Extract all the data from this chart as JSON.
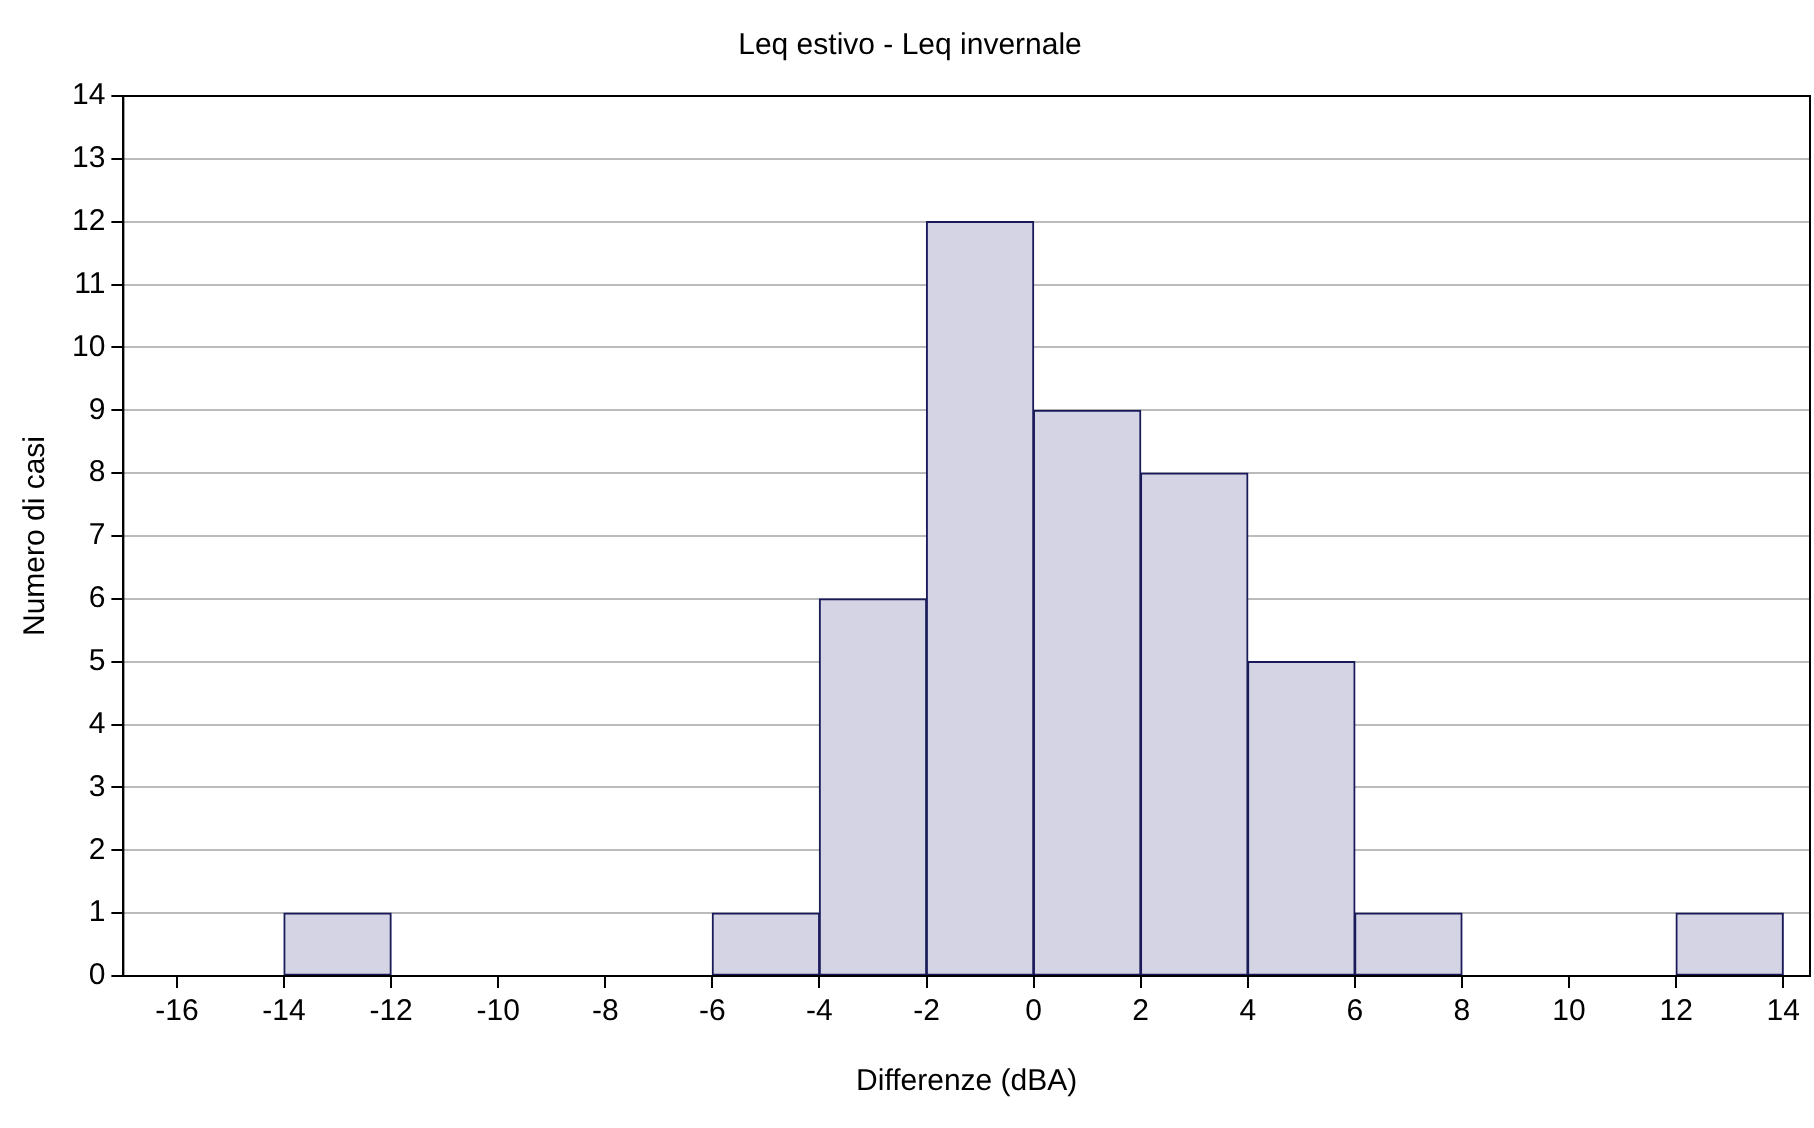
{
  "chart_data": {
    "type": "histogram",
    "title": "Leq estivo - Leq invernale",
    "xlabel": "Differenze (dBA)",
    "ylabel": "Numero di casi",
    "bins": [
      -16,
      -14,
      -12,
      -10,
      -8,
      -6,
      -4,
      -2,
      0,
      2,
      4,
      6,
      8,
      10,
      12,
      14
    ],
    "values": [
      0,
      1,
      0,
      0,
      0,
      1,
      6,
      12,
      9,
      8,
      5,
      1,
      0,
      0,
      1
    ],
    "color": "#d4d4e4",
    "xlim": [
      -17,
      14.5
    ],
    "xticks": [
      -16,
      -14,
      -12,
      -10,
      -8,
      -6,
      -4,
      -2,
      0,
      2,
      4,
      6,
      8,
      10,
      12,
      14
    ],
    "ylim": [
      0,
      14
    ],
    "yticks": [
      0,
      1,
      2,
      3,
      4,
      5,
      6,
      7,
      8,
      9,
      10,
      11,
      12,
      13,
      14
    ],
    "grid": "y"
  }
}
